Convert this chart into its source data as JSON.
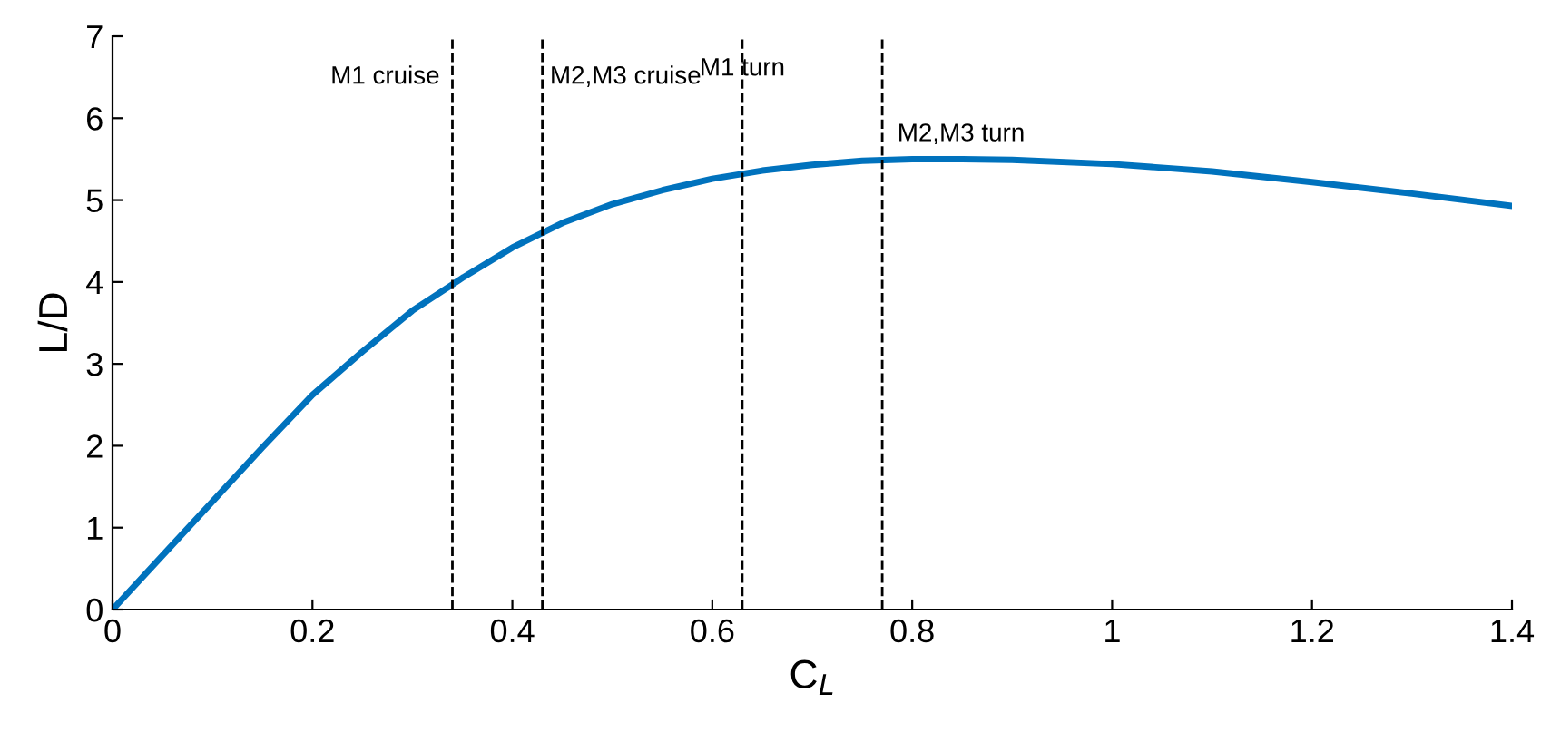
{
  "chart_data": {
    "type": "line",
    "xlabel": "C$_{L}$",
    "ylabel": "L/D",
    "series": [
      {
        "color": "#0072bd",
        "x": [
          0,
          0.05,
          0.1,
          0.15,
          0.2,
          0.25,
          0.3,
          0.35,
          0.4,
          0.45,
          0.5,
          0.55,
          0.6,
          0.65,
          0.7,
          0.75,
          0.8,
          0.85,
          0.9,
          1.0,
          1.1,
          1.2,
          1.3,
          1.4
        ],
        "values": [
          0,
          0.66,
          1.32,
          1.98,
          2.62,
          3.15,
          3.65,
          4.05,
          4.42,
          4.72,
          4.95,
          5.12,
          5.26,
          5.36,
          5.43,
          5.48,
          5.5,
          5.5,
          5.49,
          5.44,
          5.35,
          5.22,
          5.08,
          4.93
        ]
      }
    ],
    "xlim": [
      0,
      1.4
    ],
    "xticks": [
      0,
      0.2,
      0.4,
      0.6,
      0.8,
      1,
      1.2,
      1.4
    ],
    "ylim": [
      0,
      7
    ],
    "yticks": [
      0,
      1,
      2,
      3,
      4,
      5,
      6,
      7
    ],
    "ref_lines": [
      {
        "axis": "x",
        "value": 0.34,
        "label": "M1 cruise",
        "line_style": "dashed",
        "color": "#000000"
      },
      {
        "axis": "x",
        "value": 0.43,
        "label": "M2,M3 cruise",
        "line_style": "dashed",
        "color": "#000000"
      },
      {
        "axis": "x",
        "value": 0.63,
        "label": "M1 turn",
        "line_style": "dashed",
        "color": "#000000"
      },
      {
        "axis": "x",
        "value": 0.77,
        "label": "M2,M3 turn",
        "line_style": "dashed",
        "color": "#000000"
      }
    ],
    "grid": false,
    "line_style": "solid"
  }
}
